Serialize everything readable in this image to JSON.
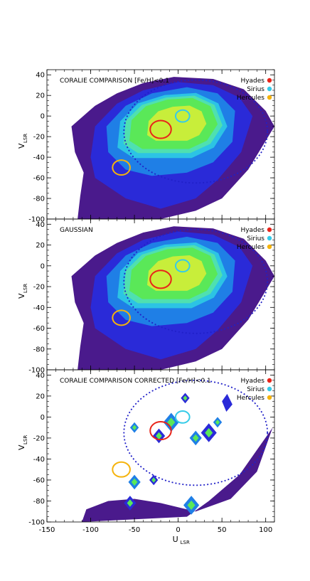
{
  "chart_data": {
    "type": "heatmap",
    "panel_count": 3,
    "xlabel": "U",
    "xlabel_sub": "LSR",
    "ylabel": "V",
    "ylabel_sub": "LSR",
    "xlim": [
      -150,
      110
    ],
    "ylim": [
      -100,
      45
    ],
    "xticks": [
      -150,
      -100,
      -50,
      0,
      50,
      100
    ],
    "yticks": [
      -100,
      -80,
      -60,
      -40,
      -20,
      0,
      20,
      40
    ],
    "legend": {
      "placement": "top-right",
      "entries": [
        {
          "name": "Hyades",
          "color": "#e8241a"
        },
        {
          "name": "Sirius",
          "color": "#35cbe8"
        },
        {
          "name": "Hercules",
          "color": "#f5b30c"
        }
      ]
    },
    "colors": {
      "dark": "#4a1a8c",
      "deep_blue": "#2a2ad8",
      "blue": "#1f7fe6",
      "cyan": "#2cc4e4",
      "aqua": "#4fe0b0",
      "green": "#5ae858",
      "yellow_green": "#c8ee3a"
    },
    "panels": [
      {
        "title": "CORALIE COMPARISON [Fe/H]<0.1",
        "circles": [
          {
            "name": "Hyades",
            "u": -20,
            "v": -13,
            "r": 12
          },
          {
            "name": "Sirius",
            "u": 5,
            "v": 0,
            "r": 8
          },
          {
            "name": "Hercules",
            "u": -65,
            "v": -50,
            "r": 10
          }
        ],
        "dotted_ellipse": {
          "u": 20,
          "v": -15,
          "ru": 82,
          "rv": 50
        }
      },
      {
        "title": "GAUSSIAN",
        "circles": [
          {
            "name": "Hyades",
            "u": -20,
            "v": -13,
            "r": 12
          },
          {
            "name": "Sirius",
            "u": 5,
            "v": 0,
            "r": 8
          },
          {
            "name": "Hercules",
            "u": -65,
            "v": -50,
            "r": 10
          }
        ],
        "dotted_ellipse": {
          "u": 20,
          "v": -15,
          "ru": 82,
          "rv": 50
        }
      },
      {
        "title": "CORALIE COMPARISON CORRECTED [Fe/H]<0.1",
        "circles": [
          {
            "name": "Hyades",
            "u": -20,
            "v": -13,
            "r": 12
          },
          {
            "name": "Sirius",
            "u": 5,
            "v": 0,
            "r": 8
          },
          {
            "name": "Hercules",
            "u": -65,
            "v": -50,
            "r": 10
          }
        ],
        "dotted_ellipse": {
          "u": 20,
          "v": -15,
          "ru": 82,
          "rv": 50
        }
      }
    ]
  }
}
